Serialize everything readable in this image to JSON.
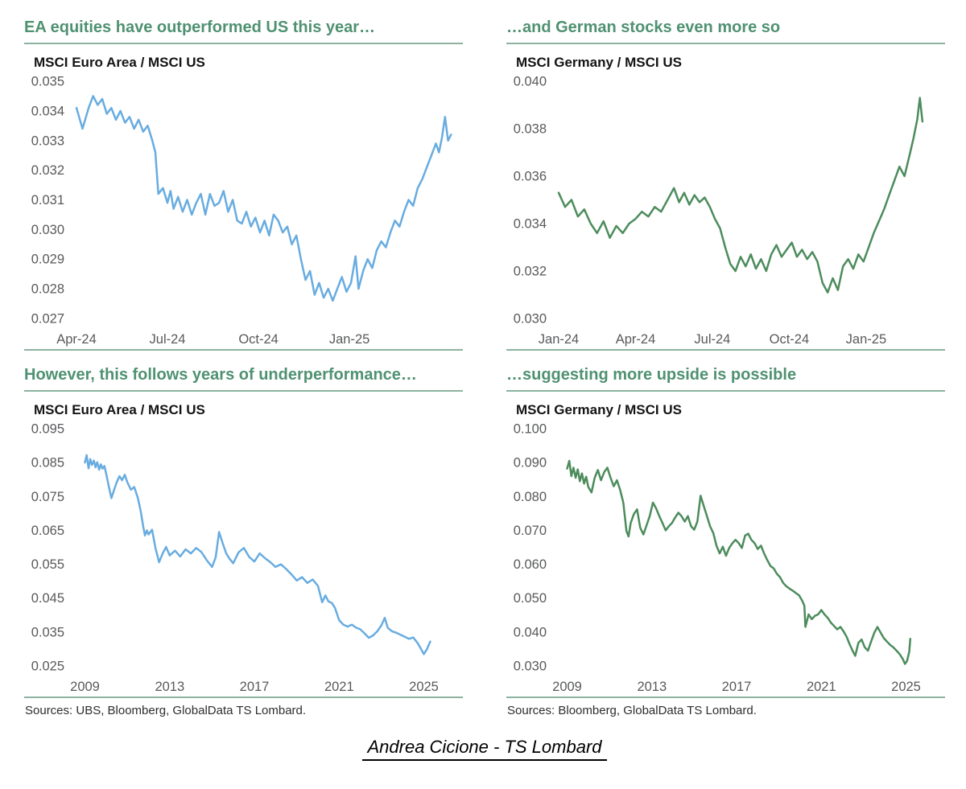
{
  "colors": {
    "title_green": "#4f9171",
    "rule_green": "#8db3a0",
    "blue_line": "#68ace0",
    "green_line": "#4c8c5c",
    "tick_text": "#58595b"
  },
  "footer": {
    "text": "Andrea Cicione - TS Lombard"
  },
  "chart_data": [
    {
      "type": "line",
      "title": "EA equities have outperformed US this year…",
      "subtitle": "MSCI Euro Area / MSCI US",
      "line_color": "#68ace0",
      "x_unit": "months since Apr-2024",
      "x_range": [
        0,
        12.5
      ],
      "y_range": [
        0.027,
        0.035
      ],
      "x_ticks": [
        {
          "v": 0,
          "label": "Apr-24"
        },
        {
          "v": 3,
          "label": "Jul-24"
        },
        {
          "v": 6,
          "label": "Oct-24"
        },
        {
          "v": 9,
          "label": "Jan-25"
        }
      ],
      "y_ticks": [
        {
          "v": 0.035,
          "label": "0.035"
        },
        {
          "v": 0.034,
          "label": "0.034"
        },
        {
          "v": 0.033,
          "label": "0.033"
        },
        {
          "v": 0.032,
          "label": "0.032"
        },
        {
          "v": 0.031,
          "label": "0.031"
        },
        {
          "v": 0.03,
          "label": "0.030"
        },
        {
          "v": 0.029,
          "label": "0.029"
        },
        {
          "v": 0.028,
          "label": "0.028"
        },
        {
          "v": 0.027,
          "label": "0.027"
        }
      ],
      "x": [
        0,
        0.2,
        0.4,
        0.55,
        0.7,
        0.85,
        1.0,
        1.15,
        1.3,
        1.45,
        1.6,
        1.75,
        1.9,
        2.05,
        2.2,
        2.35,
        2.5,
        2.6,
        2.7,
        2.85,
        3.0,
        3.1,
        3.2,
        3.35,
        3.5,
        3.65,
        3.8,
        3.95,
        4.1,
        4.25,
        4.4,
        4.55,
        4.7,
        4.85,
        5.0,
        5.15,
        5.3,
        5.45,
        5.6,
        5.75,
        5.9,
        6.05,
        6.2,
        6.35,
        6.5,
        6.65,
        6.8,
        6.95,
        7.1,
        7.25,
        7.4,
        7.55,
        7.7,
        7.85,
        8.0,
        8.15,
        8.3,
        8.45,
        8.6,
        8.75,
        8.9,
        9.05,
        9.2,
        9.3,
        9.45,
        9.6,
        9.75,
        9.9,
        10.05,
        10.2,
        10.35,
        10.5,
        10.65,
        10.8,
        10.95,
        11.1,
        11.25,
        11.4,
        11.55,
        11.7,
        11.85,
        11.95,
        12.05,
        12.15,
        12.25,
        12.35
      ],
      "y": [
        0.0341,
        0.0334,
        0.0341,
        0.0345,
        0.0342,
        0.0344,
        0.0339,
        0.0341,
        0.0337,
        0.034,
        0.0336,
        0.0338,
        0.0334,
        0.0337,
        0.0333,
        0.0335,
        0.033,
        0.0326,
        0.0312,
        0.0314,
        0.0309,
        0.0313,
        0.0307,
        0.0311,
        0.0306,
        0.031,
        0.0305,
        0.0309,
        0.0312,
        0.0305,
        0.0312,
        0.0308,
        0.0309,
        0.0313,
        0.0306,
        0.031,
        0.0303,
        0.0302,
        0.0306,
        0.0301,
        0.0304,
        0.0299,
        0.0303,
        0.0298,
        0.0305,
        0.0303,
        0.0299,
        0.0301,
        0.0295,
        0.0298,
        0.029,
        0.0283,
        0.0286,
        0.0278,
        0.0282,
        0.0277,
        0.028,
        0.0276,
        0.028,
        0.0284,
        0.0279,
        0.0282,
        0.0291,
        0.028,
        0.0286,
        0.029,
        0.0287,
        0.0293,
        0.0296,
        0.0294,
        0.0299,
        0.0303,
        0.0301,
        0.0306,
        0.031,
        0.0308,
        0.0314,
        0.0317,
        0.0321,
        0.0325,
        0.0329,
        0.0326,
        0.0331,
        0.0338,
        0.033,
        0.0332
      ]
    },
    {
      "type": "line",
      "title": "…and German stocks even more so",
      "subtitle": "MSCI Germany / MSCI US",
      "line_color": "#4c8c5c",
      "x_unit": "months since Jan-2024",
      "x_range": [
        0,
        14.8
      ],
      "y_range": [
        0.03,
        0.04
      ],
      "x_ticks": [
        {
          "v": 0,
          "label": "Jan-24"
        },
        {
          "v": 3,
          "label": "Apr-24"
        },
        {
          "v": 6,
          "label": "Jul-24"
        },
        {
          "v": 9,
          "label": "Oct-24"
        },
        {
          "v": 12,
          "label": "Jan-25"
        }
      ],
      "y_ticks": [
        {
          "v": 0.04,
          "label": "0.040"
        },
        {
          "v": 0.038,
          "label": "0.038"
        },
        {
          "v": 0.036,
          "label": "0.036"
        },
        {
          "v": 0.034,
          "label": "0.034"
        },
        {
          "v": 0.032,
          "label": "0.032"
        },
        {
          "v": 0.03,
          "label": "0.030"
        }
      ],
      "x": [
        0,
        0.25,
        0.5,
        0.75,
        1.0,
        1.25,
        1.5,
        1.75,
        2.0,
        2.25,
        2.5,
        2.75,
        3.0,
        3.25,
        3.5,
        3.75,
        4.0,
        4.25,
        4.5,
        4.7,
        4.9,
        5.1,
        5.3,
        5.5,
        5.7,
        5.9,
        6.1,
        6.3,
        6.5,
        6.7,
        6.9,
        7.1,
        7.3,
        7.5,
        7.7,
        7.9,
        8.1,
        8.3,
        8.5,
        8.7,
        8.9,
        9.1,
        9.3,
        9.5,
        9.7,
        9.9,
        10.1,
        10.3,
        10.5,
        10.7,
        10.9,
        11.1,
        11.3,
        11.5,
        11.7,
        11.9,
        12.1,
        12.3,
        12.5,
        12.7,
        12.9,
        13.1,
        13.3,
        13.5,
        13.7,
        13.85,
        14.0,
        14.1,
        14.2
      ],
      "y": [
        0.0353,
        0.0347,
        0.035,
        0.0343,
        0.0346,
        0.034,
        0.0336,
        0.0341,
        0.0334,
        0.0339,
        0.0336,
        0.034,
        0.0342,
        0.0345,
        0.0343,
        0.0347,
        0.0345,
        0.035,
        0.0355,
        0.0349,
        0.0353,
        0.0348,
        0.0352,
        0.0349,
        0.0351,
        0.0347,
        0.0342,
        0.0338,
        0.033,
        0.0323,
        0.032,
        0.0326,
        0.0322,
        0.0327,
        0.0321,
        0.0325,
        0.032,
        0.0327,
        0.0331,
        0.0326,
        0.0329,
        0.0332,
        0.0326,
        0.0329,
        0.0325,
        0.0328,
        0.0324,
        0.0315,
        0.0311,
        0.0317,
        0.0312,
        0.0322,
        0.0325,
        0.0321,
        0.0327,
        0.0324,
        0.033,
        0.0336,
        0.0341,
        0.0346,
        0.0352,
        0.0358,
        0.0364,
        0.036,
        0.0369,
        0.0376,
        0.0384,
        0.0393,
        0.0383
      ]
    },
    {
      "type": "line",
      "title": "However, this follows years of underperformance…",
      "subtitle": "MSCI Euro Area / MSCI US",
      "source": "Sources: UBS, Bloomberg, GlobalData TS Lombard.",
      "line_color": "#68ace0",
      "x_unit": "year",
      "x_range": [
        2008.6,
        2026.5
      ],
      "y_range": [
        0.025,
        0.095
      ],
      "x_ticks": [
        {
          "v": 2009,
          "label": "2009"
        },
        {
          "v": 2013,
          "label": "2013"
        },
        {
          "v": 2017,
          "label": "2017"
        },
        {
          "v": 2021,
          "label": "2021"
        },
        {
          "v": 2025,
          "label": "2025"
        }
      ],
      "y_ticks": [
        {
          "v": 0.095,
          "label": "0.095"
        },
        {
          "v": 0.085,
          "label": "0.085"
        },
        {
          "v": 0.075,
          "label": "0.075"
        },
        {
          "v": 0.065,
          "label": "0.065"
        },
        {
          "v": 0.055,
          "label": "0.055"
        },
        {
          "v": 0.045,
          "label": "0.045"
        },
        {
          "v": 0.035,
          "label": "0.035"
        },
        {
          "v": 0.025,
          "label": "0.025"
        }
      ],
      "x": [
        2009.0,
        2009.08,
        2009.17,
        2009.25,
        2009.33,
        2009.42,
        2009.5,
        2009.58,
        2009.67,
        2009.75,
        2009.83,
        2009.92,
        2010.0,
        2010.13,
        2010.25,
        2010.38,
        2010.5,
        2010.63,
        2010.75,
        2010.88,
        2011.0,
        2011.17,
        2011.33,
        2011.5,
        2011.63,
        2011.75,
        2011.83,
        2011.92,
        2012.0,
        2012.17,
        2012.33,
        2012.5,
        2012.67,
        2012.83,
        2013.0,
        2013.25,
        2013.5,
        2013.75,
        2014.0,
        2014.25,
        2014.5,
        2014.75,
        2015.0,
        2015.17,
        2015.33,
        2015.5,
        2015.67,
        2015.83,
        2016.0,
        2016.25,
        2016.5,
        2016.75,
        2017.0,
        2017.25,
        2017.5,
        2017.75,
        2018.0,
        2018.25,
        2018.5,
        2018.75,
        2019.0,
        2019.25,
        2019.5,
        2019.75,
        2020.0,
        2020.2,
        2020.35,
        2020.5,
        2020.65,
        2020.8,
        2021.0,
        2021.2,
        2021.4,
        2021.6,
        2021.8,
        2022.0,
        2022.2,
        2022.4,
        2022.6,
        2022.8,
        2023.0,
        2023.15,
        2023.3,
        2023.5,
        2023.7,
        2023.9,
        2024.1,
        2024.3,
        2024.5,
        2024.7,
        2024.85,
        2025.0,
        2025.15,
        2025.3
      ],
      "y": [
        0.085,
        0.0872,
        0.0833,
        0.086,
        0.0843,
        0.0856,
        0.0836,
        0.0851,
        0.0829,
        0.0845,
        0.0832,
        0.084,
        0.0818,
        0.0778,
        0.0745,
        0.077,
        0.0792,
        0.081,
        0.0798,
        0.0814,
        0.0792,
        0.077,
        0.0778,
        0.0745,
        0.0708,
        0.0662,
        0.0635,
        0.065,
        0.0638,
        0.0652,
        0.0598,
        0.0556,
        0.0582,
        0.0601,
        0.0576,
        0.059,
        0.0573,
        0.0594,
        0.0582,
        0.0598,
        0.0586,
        0.0562,
        0.0542,
        0.057,
        0.0645,
        0.0612,
        0.0582,
        0.0566,
        0.0553,
        0.0585,
        0.0598,
        0.0572,
        0.0558,
        0.0582,
        0.0568,
        0.0556,
        0.0542,
        0.055,
        0.0536,
        0.052,
        0.0502,
        0.0512,
        0.0495,
        0.0505,
        0.0486,
        0.0438,
        0.0458,
        0.044,
        0.0436,
        0.0422,
        0.0385,
        0.0372,
        0.0366,
        0.0372,
        0.0363,
        0.0358,
        0.0346,
        0.0333,
        0.034,
        0.0352,
        0.037,
        0.0392,
        0.0362,
        0.0352,
        0.0348,
        0.0342,
        0.0336,
        0.033,
        0.0334,
        0.0318,
        0.0302,
        0.0285,
        0.03,
        0.0322
      ]
    },
    {
      "type": "line",
      "title": "…suggesting more upside is possible",
      "subtitle": "MSCI Germany / MSCI US",
      "source": "Sources: Bloomberg, GlobalData TS Lombard.",
      "line_color": "#4c8c5c",
      "x_unit": "year",
      "x_range": [
        2008.6,
        2026.5
      ],
      "y_range": [
        0.03,
        0.1
      ],
      "x_ticks": [
        {
          "v": 2009,
          "label": "2009"
        },
        {
          "v": 2013,
          "label": "2013"
        },
        {
          "v": 2017,
          "label": "2017"
        },
        {
          "v": 2021,
          "label": "2021"
        },
        {
          "v": 2025,
          "label": "2025"
        }
      ],
      "y_ticks": [
        {
          "v": 0.1,
          "label": "0.100"
        },
        {
          "v": 0.09,
          "label": "0.090"
        },
        {
          "v": 0.08,
          "label": "0.080"
        },
        {
          "v": 0.07,
          "label": "0.070"
        },
        {
          "v": 0.06,
          "label": "0.060"
        },
        {
          "v": 0.05,
          "label": "0.050"
        },
        {
          "v": 0.04,
          "label": "0.040"
        },
        {
          "v": 0.03,
          "label": "0.030"
        }
      ],
      "x": [
        2009.0,
        2009.1,
        2009.2,
        2009.3,
        2009.4,
        2009.5,
        2009.6,
        2009.7,
        2009.8,
        2009.9,
        2010.0,
        2010.15,
        2010.3,
        2010.45,
        2010.6,
        2010.75,
        2010.9,
        2011.05,
        2011.2,
        2011.35,
        2011.5,
        2011.65,
        2011.8,
        2011.9,
        2012.0,
        2012.15,
        2012.3,
        2012.45,
        2012.6,
        2012.75,
        2012.9,
        2013.05,
        2013.2,
        2013.35,
        2013.5,
        2013.65,
        2013.8,
        2013.95,
        2014.1,
        2014.25,
        2014.4,
        2014.55,
        2014.7,
        2014.85,
        2015.0,
        2015.15,
        2015.3,
        2015.45,
        2015.6,
        2015.75,
        2015.9,
        2016.05,
        2016.2,
        2016.35,
        2016.5,
        2016.65,
        2016.8,
        2016.95,
        2017.1,
        2017.25,
        2017.4,
        2017.55,
        2017.7,
        2017.85,
        2018.0,
        2018.15,
        2018.3,
        2018.45,
        2018.6,
        2018.75,
        2018.9,
        2019.05,
        2019.2,
        2019.35,
        2019.5,
        2019.65,
        2019.8,
        2019.95,
        2020.1,
        2020.2,
        2020.25,
        2020.4,
        2020.55,
        2020.7,
        2020.85,
        2021.0,
        2021.15,
        2021.3,
        2021.45,
        2021.6,
        2021.75,
        2021.9,
        2022.05,
        2022.2,
        2022.35,
        2022.5,
        2022.6,
        2022.75,
        2022.9,
        2023.05,
        2023.2,
        2023.35,
        2023.5,
        2023.65,
        2023.8,
        2023.95,
        2024.1,
        2024.25,
        2024.4,
        2024.55,
        2024.7,
        2024.85,
        2024.95,
        2025.05,
        2025.15,
        2025.2
      ],
      "y": [
        0.0882,
        0.0905,
        0.086,
        0.0885,
        0.0855,
        0.088,
        0.0845,
        0.0868,
        0.0838,
        0.0858,
        0.0828,
        0.0812,
        0.0855,
        0.0878,
        0.0848,
        0.0872,
        0.0885,
        0.0855,
        0.083,
        0.0848,
        0.082,
        0.0782,
        0.0698,
        0.0682,
        0.0722,
        0.0748,
        0.0762,
        0.0708,
        0.0688,
        0.0715,
        0.0742,
        0.0782,
        0.0765,
        0.0742,
        0.0722,
        0.07,
        0.0712,
        0.0722,
        0.0738,
        0.0752,
        0.0742,
        0.0726,
        0.0742,
        0.0712,
        0.0702,
        0.0726,
        0.0802,
        0.0772,
        0.0742,
        0.0712,
        0.0692,
        0.0655,
        0.0632,
        0.0652,
        0.0625,
        0.0648,
        0.0662,
        0.0672,
        0.0662,
        0.0648,
        0.0685,
        0.069,
        0.0672,
        0.0662,
        0.0645,
        0.0655,
        0.0632,
        0.0612,
        0.0595,
        0.0588,
        0.0572,
        0.0562,
        0.0545,
        0.0535,
        0.0528,
        0.0522,
        0.0515,
        0.0508,
        0.0492,
        0.0478,
        0.0415,
        0.0452,
        0.0438,
        0.0448,
        0.0452,
        0.0465,
        0.0452,
        0.0442,
        0.0428,
        0.0418,
        0.0408,
        0.0415,
        0.0402,
        0.0385,
        0.0362,
        0.0342,
        0.033,
        0.0368,
        0.0378,
        0.0355,
        0.0345,
        0.0372,
        0.0398,
        0.0415,
        0.0398,
        0.0382,
        0.0372,
        0.0362,
        0.0355,
        0.0345,
        0.0335,
        0.032,
        0.0306,
        0.0315,
        0.0342,
        0.038
      ]
    }
  ]
}
